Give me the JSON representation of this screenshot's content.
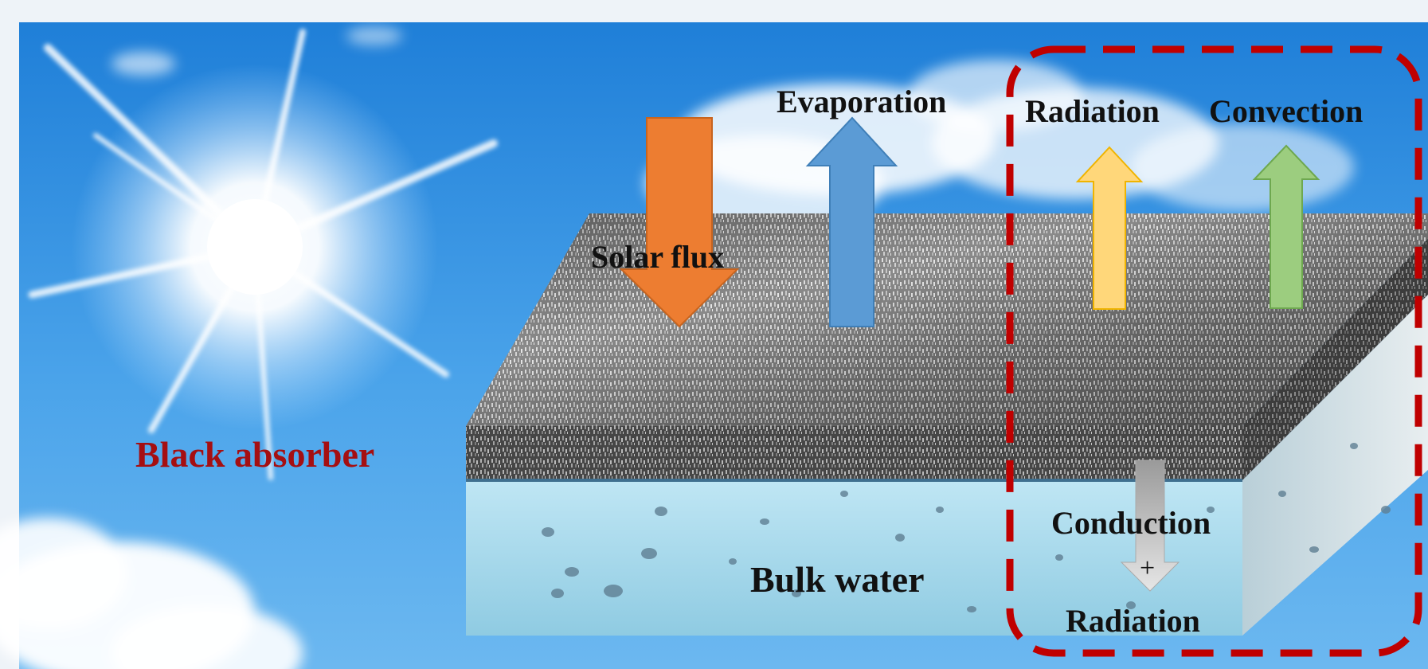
{
  "labels": {
    "black_absorber": "Black absorber",
    "solar_flux": "Solar flux",
    "evaporation": "Evaporation",
    "radiation_top": "Radiation",
    "convection": "Convection",
    "conduction": "Conduction",
    "plus": "+",
    "radiation_bottom": "Radiation",
    "bulk_water": "Bulk water"
  },
  "colors": {
    "sky_top": "#1f7fd8",
    "sky_bottom": "#6cb8f0",
    "absorber_dark": "#2f2f2f",
    "water": "#9fd6ea",
    "solar_flux_arrow": "#ed7d31",
    "evaporation_arrow": "#5b9bd5",
    "radiation_arrow": "#ffd77a",
    "convection_arrow": "#9ccd7f",
    "conduction_arrow": "#c9c9c9",
    "highlight_box": "#c00000",
    "black_absorber_text": "#a50f12"
  },
  "icons": {
    "sun": "sun-icon",
    "clouds": "cloud-icon",
    "bubbles": "water-bubble-icon"
  }
}
